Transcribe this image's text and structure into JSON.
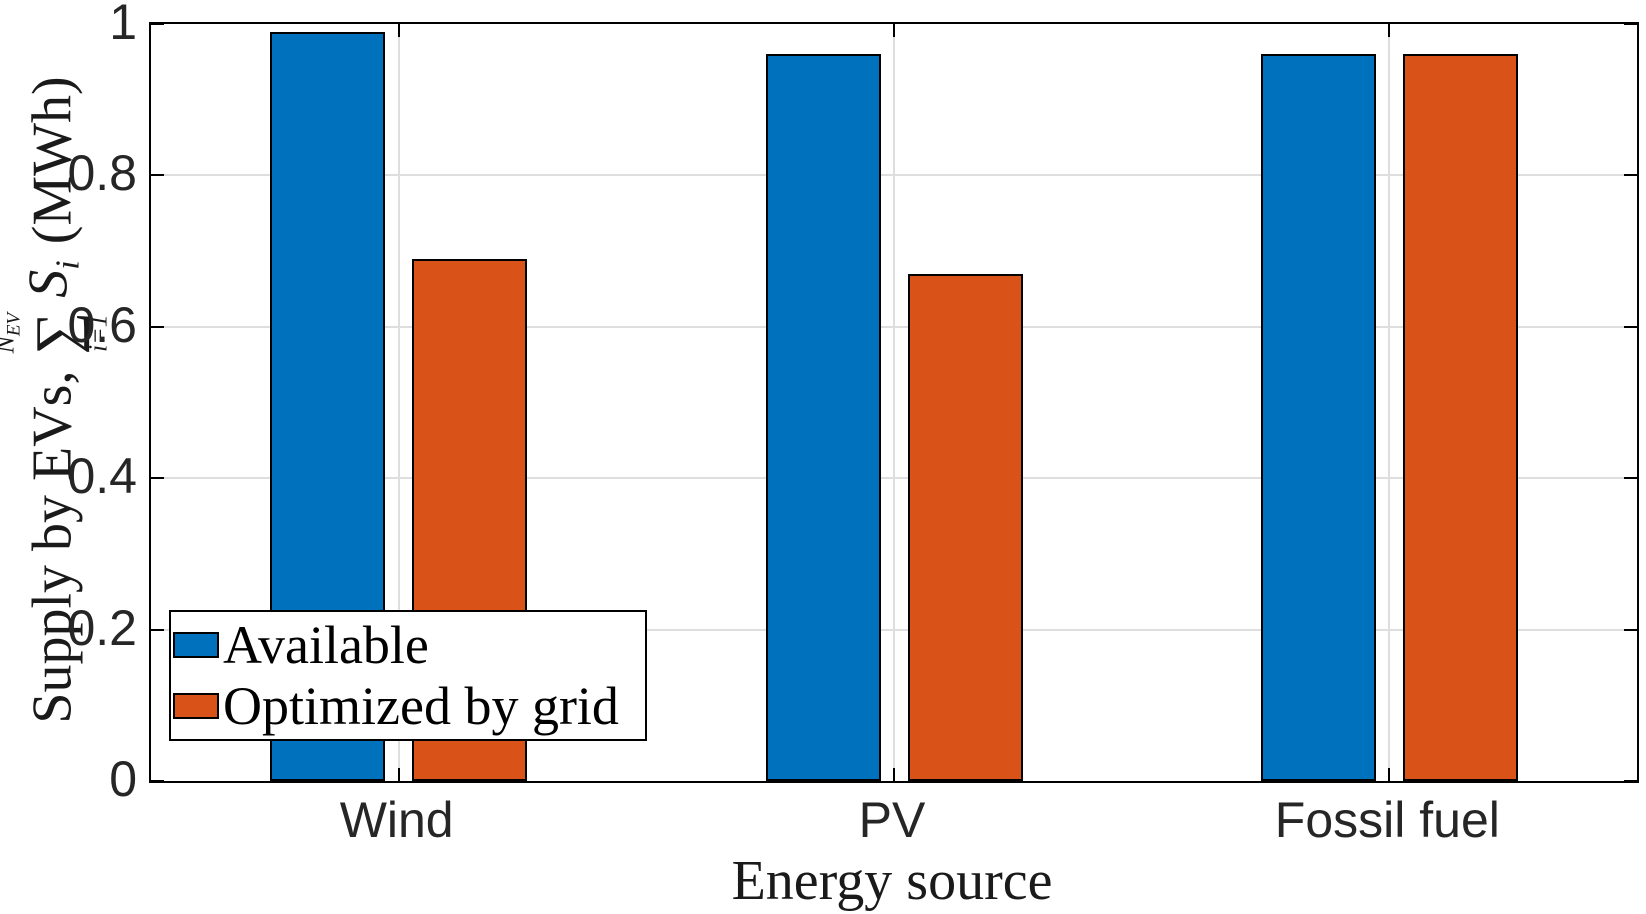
{
  "chart_data": {
    "type": "bar",
    "title": "",
    "categories": [
      "Wind",
      "PV",
      "Fossil fuel"
    ],
    "series": [
      {
        "name": "Available",
        "color": "#0072BD",
        "values": [
          0.99,
          0.96,
          0.96
        ]
      },
      {
        "name": "Optimized by grid",
        "color": "#D95319",
        "values": [
          0.69,
          0.67,
          0.96
        ]
      }
    ],
    "xlabel": "Energy source",
    "ylabel": "Supply by EVs, Σ_{i=1}^{N_EV} S_i (MWh)",
    "ylabel_parts": {
      "prefix": "Supply by EVs,",
      "sigma": "∑",
      "sum_upper_main": "N",
      "sum_upper_sub": "EV",
      "sum_lower": "i=1",
      "series_symbol": "S",
      "series_symbol_sub": "i",
      "unit": "(MWh)"
    },
    "ylim": [
      0,
      1
    ],
    "yticks": [
      0,
      0.2,
      0.4,
      0.6,
      0.8,
      1
    ],
    "ytick_labels": [
      "0",
      "0.2",
      "0.4",
      "0.6",
      "0.8",
      "1"
    ],
    "grid": true,
    "legend_position": "southwest",
    "colors": {
      "series_blue": "#0072BD",
      "series_orange": "#D95319",
      "grid_line": "#dedede",
      "axis_line": "#000000",
      "tick_label": "#262626"
    }
  },
  "legend": {
    "items": [
      {
        "label": "Available",
        "color": "#0072BD"
      },
      {
        "label": "Optimized by grid",
        "color": "#D95319"
      }
    ]
  }
}
